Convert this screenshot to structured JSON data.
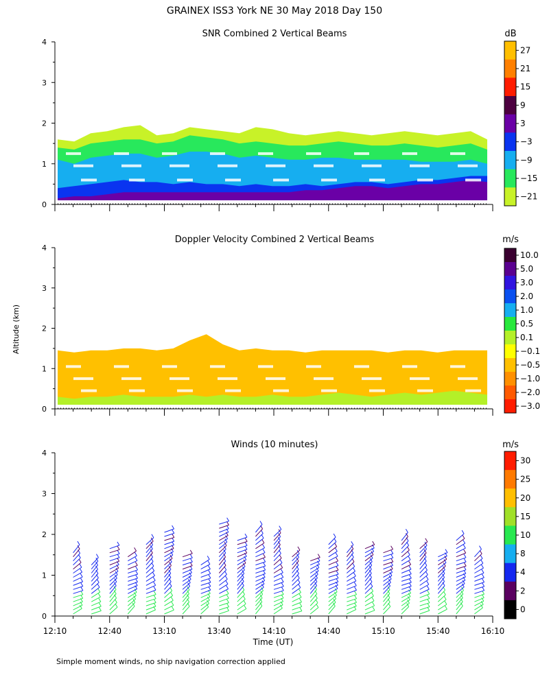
{
  "figure_title": "GRAINEX ISS3 York NE  30 May 2018 Day 150",
  "shared_ylabel": "Altitude (km)",
  "footnote": "Simple moment winds, no ship navigation correction applied",
  "chart_data": [
    {
      "type": "heatmap",
      "title": "SNR Combined 2 Vertical Beams",
      "xlabel": "",
      "ylabel": "Altitude (km)",
      "xlim": [
        "12:10",
        "16:10"
      ],
      "ylim": [
        0,
        4
      ],
      "yticks": [
        0,
        1,
        2,
        3,
        4
      ],
      "colorbar": {
        "unit": "dB",
        "labels": [
          "27",
          "21",
          "15",
          "9",
          "3",
          "−3",
          "−9",
          "−15",
          "−21"
        ],
        "colors": [
          "#ffbf00",
          "#ff8000",
          "#ff1c00",
          "#4d0040",
          "#6a00a6",
          "#0a34f0",
          "#16aef0",
          "#28e85c",
          "#c8f228"
        ]
      },
      "layers": [
        {
          "name": "top",
          "color": "#c8f228",
          "top": [
            1.6,
            1.55,
            1.75,
            1.8,
            1.9,
            1.95,
            1.7,
            1.75,
            1.9,
            1.85,
            1.8,
            1.75,
            1.9,
            1.85,
            1.75,
            1.7,
            1.75,
            1.8,
            1.75,
            1.7,
            1.75,
            1.8,
            1.75,
            1.7,
            1.75,
            1.8,
            1.6
          ]
        },
        {
          "name": "mid-green",
          "color": "#28e85c",
          "top": [
            1.4,
            1.35,
            1.5,
            1.55,
            1.6,
            1.6,
            1.5,
            1.55,
            1.7,
            1.65,
            1.6,
            1.5,
            1.55,
            1.5,
            1.45,
            1.45,
            1.5,
            1.55,
            1.5,
            1.45,
            1.45,
            1.5,
            1.45,
            1.4,
            1.45,
            1.5,
            1.35
          ]
        },
        {
          "name": "cyan",
          "color": "#16aef0",
          "top": [
            1.1,
            1.0,
            1.15,
            1.2,
            1.25,
            1.25,
            1.15,
            1.2,
            1.3,
            1.3,
            1.25,
            1.15,
            1.2,
            1.15,
            1.1,
            1.1,
            1.15,
            1.15,
            1.1,
            1.1,
            1.1,
            1.1,
            1.05,
            1.05,
            1.05,
            1.1,
            1.0
          ]
        },
        {
          "name": "blue",
          "color": "#0a34f0",
          "top": [
            0.4,
            0.45,
            0.5,
            0.55,
            0.6,
            0.55,
            0.55,
            0.5,
            0.55,
            0.5,
            0.5,
            0.45,
            0.5,
            0.45,
            0.45,
            0.5,
            0.45,
            0.5,
            0.55,
            0.55,
            0.5,
            0.55,
            0.6,
            0.6,
            0.65,
            0.7,
            0.7
          ]
        },
        {
          "name": "purple",
          "color": "#6a00a6",
          "top": [
            0.15,
            0.2,
            0.2,
            0.25,
            0.3,
            0.3,
            0.3,
            0.3,
            0.3,
            0.3,
            0.3,
            0.3,
            0.3,
            0.3,
            0.3,
            0.35,
            0.35,
            0.4,
            0.45,
            0.45,
            0.4,
            0.45,
            0.5,
            0.5,
            0.55,
            0.6,
            0.55
          ]
        }
      ]
    },
    {
      "type": "heatmap",
      "title": "Doppler Velocity Combined 2 Vertical Beams",
      "xlabel": "",
      "ylabel": "Altitude (km)",
      "xlim": [
        "12:10",
        "16:10"
      ],
      "ylim": [
        0,
        4
      ],
      "yticks": [
        0,
        1,
        2,
        3,
        4
      ],
      "colorbar": {
        "unit": "m/s",
        "labels": [
          "10.0",
          "5.0",
          "3.0",
          "2.0",
          "1.0",
          "0.5",
          "0.1",
          "−0.1",
          "−0.5",
          "−1.0",
          "−2.0",
          "−3.0"
        ],
        "colors": [
          "#3a0030",
          "#5a0090",
          "#3014e0",
          "#0a50f0",
          "#16aef0",
          "#28e83c",
          "#b4f028",
          "#ffff00",
          "#ffc000",
          "#ff9000",
          "#ff5a00",
          "#ff1c00"
        ]
      },
      "layers": [
        {
          "name": "orange",
          "color": "#ffc000",
          "top": [
            1.45,
            1.4,
            1.45,
            1.45,
            1.5,
            1.5,
            1.45,
            1.5,
            1.7,
            1.85,
            1.6,
            1.45,
            1.5,
            1.45,
            1.45,
            1.4,
            1.45,
            1.45,
            1.45,
            1.45,
            1.4,
            1.45,
            1.45,
            1.4,
            1.45,
            1.45,
            1.45
          ]
        },
        {
          "name": "green-near-ground",
          "color": "#b4f028",
          "top": [
            0.3,
            0.25,
            0.3,
            0.3,
            0.35,
            0.3,
            0.3,
            0.3,
            0.35,
            0.3,
            0.35,
            0.3,
            0.3,
            0.35,
            0.3,
            0.3,
            0.35,
            0.4,
            0.35,
            0.3,
            0.35,
            0.4,
            0.35,
            0.4,
            0.45,
            0.4,
            0.35
          ]
        }
      ]
    },
    {
      "type": "scatter",
      "title": "Winds (10 minutes)",
      "xlabel": "Time (UT)",
      "ylabel": "Altitude (km)",
      "xlim": [
        "12:10",
        "16:10"
      ],
      "ylim": [
        0,
        4
      ],
      "xticks": [
        "12:10",
        "12:40",
        "13:10",
        "13:40",
        "14:10",
        "14:40",
        "15:10",
        "15:40",
        "16:10"
      ],
      "yticks": [
        0,
        1,
        2,
        3,
        4
      ],
      "colorbar": {
        "unit": "m/s",
        "labels": [
          "30",
          "25",
          "20",
          "15",
          "10",
          "8",
          "4",
          "2",
          "0"
        ],
        "colors": [
          "#ff1c00",
          "#ff7a00",
          "#ffbf00",
          "#a0e028",
          "#28e850",
          "#16aef0",
          "#1428f0",
          "#5a0060",
          "#000000"
        ]
      },
      "profiles": [
        {
          "time": "12:20",
          "top": 1.6
        },
        {
          "time": "12:30",
          "top": 1.3
        },
        {
          "time": "12:40",
          "top": 1.7
        },
        {
          "time": "12:50",
          "top": 1.5
        },
        {
          "time": "13:00",
          "top": 1.8
        },
        {
          "time": "13:10",
          "top": 2.1
        },
        {
          "time": "13:20",
          "top": 1.5
        },
        {
          "time": "13:30",
          "top": 1.3
        },
        {
          "time": "13:40",
          "top": 2.3
        },
        {
          "time": "13:50",
          "top": 1.9
        },
        {
          "time": "14:00",
          "top": 2.1
        },
        {
          "time": "14:10",
          "top": 2.0
        },
        {
          "time": "14:20",
          "top": 1.5
        },
        {
          "time": "14:30",
          "top": 1.4
        },
        {
          "time": "14:40",
          "top": 1.8
        },
        {
          "time": "14:50",
          "top": 1.6
        },
        {
          "time": "15:00",
          "top": 1.7
        },
        {
          "time": "15:10",
          "top": 1.6
        },
        {
          "time": "15:20",
          "top": 1.9
        },
        {
          "time": "15:30",
          "top": 1.7
        },
        {
          "time": "15:40",
          "top": 1.5
        },
        {
          "time": "15:50",
          "top": 1.9
        },
        {
          "time": "16:00",
          "top": 1.5
        }
      ]
    }
  ]
}
